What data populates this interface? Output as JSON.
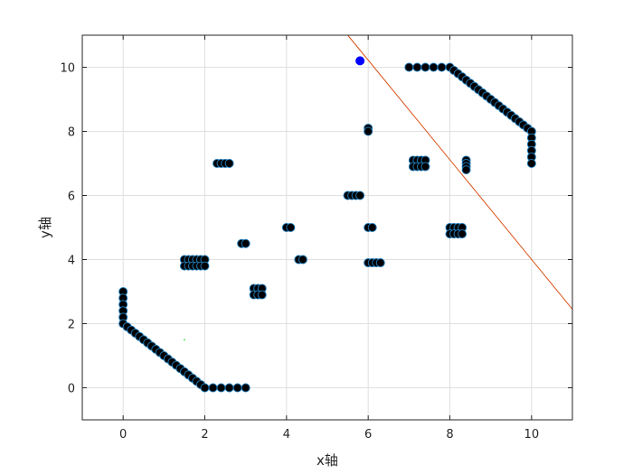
{
  "chart_data": {
    "type": "scatter",
    "xlabel": "x轴",
    "ylabel": "y轴",
    "xlim": [
      -1,
      11
    ],
    "ylim": [
      -1,
      11
    ],
    "xticks": [
      0,
      2,
      4,
      6,
      8,
      10
    ],
    "yticks": [
      0,
      2,
      4,
      6,
      8,
      10
    ],
    "grid": true,
    "colors": {
      "marker_fill": "#000000",
      "marker_edge": "#1f78b4",
      "line": "#d95319",
      "highlight": "#0000ff",
      "minor_mark": "#00cc00",
      "grid": "#e0e0e0",
      "axis": "#262626"
    },
    "series": [
      {
        "values": [
          [
            0,
            3.0
          ],
          [
            0,
            2.8
          ],
          [
            0,
            2.6
          ],
          [
            0,
            2.4
          ],
          [
            0,
            2.2
          ],
          [
            0,
            2.0
          ],
          [
            0.1,
            1.9
          ],
          [
            0.2,
            1.8
          ],
          [
            0.3,
            1.7
          ],
          [
            0.4,
            1.6
          ],
          [
            0.5,
            1.5
          ],
          [
            0.6,
            1.4
          ],
          [
            0.7,
            1.3
          ],
          [
            0.8,
            1.2
          ],
          [
            0.9,
            1.1
          ],
          [
            1.0,
            1.0
          ],
          [
            1.1,
            0.9
          ],
          [
            1.2,
            0.8
          ],
          [
            1.3,
            0.7
          ],
          [
            1.4,
            0.6
          ],
          [
            1.5,
            0.5
          ],
          [
            1.6,
            0.4
          ],
          [
            1.7,
            0.3
          ],
          [
            1.8,
            0.2
          ],
          [
            1.9,
            0.1
          ],
          [
            2.0,
            0
          ],
          [
            2.2,
            0
          ],
          [
            2.4,
            0
          ],
          [
            2.6,
            0
          ],
          [
            2.8,
            0
          ],
          [
            3.0,
            0
          ],
          [
            1.5,
            4.0
          ],
          [
            1.6,
            4.0
          ],
          [
            1.7,
            4.0
          ],
          [
            1.8,
            4.0
          ],
          [
            1.9,
            4.0
          ],
          [
            2.0,
            4.0
          ],
          [
            1.5,
            3.8
          ],
          [
            1.6,
            3.8
          ],
          [
            1.7,
            3.8
          ],
          [
            1.8,
            3.8
          ],
          [
            1.9,
            3.8
          ],
          [
            2.0,
            3.8
          ],
          [
            2.3,
            7.0
          ],
          [
            2.4,
            7.0
          ],
          [
            2.5,
            7.0
          ],
          [
            2.6,
            7.0
          ],
          [
            2.9,
            4.5
          ],
          [
            3.0,
            4.5
          ],
          [
            3.2,
            3.1
          ],
          [
            3.3,
            3.1
          ],
          [
            3.4,
            3.1
          ],
          [
            3.2,
            2.9
          ],
          [
            3.3,
            2.9
          ],
          [
            3.4,
            2.9
          ],
          [
            4.0,
            5.0
          ],
          [
            4.1,
            5.0
          ],
          [
            4.3,
            4.0
          ],
          [
            4.4,
            4.0
          ],
          [
            5.5,
            6.0
          ],
          [
            5.6,
            6.0
          ],
          [
            5.7,
            6.0
          ],
          [
            5.8,
            6.0
          ],
          [
            6.0,
            8.1
          ],
          [
            6.0,
            8.0
          ],
          [
            6.0,
            5.0
          ],
          [
            6.1,
            5.0
          ],
          [
            6.0,
            3.9
          ],
          [
            6.1,
            3.9
          ],
          [
            6.2,
            3.9
          ],
          [
            6.3,
            3.9
          ],
          [
            7.0,
            10.0
          ],
          [
            7.2,
            10.0
          ],
          [
            7.4,
            10.0
          ],
          [
            7.6,
            10.0
          ],
          [
            7.8,
            10.0
          ],
          [
            8.0,
            10.0
          ],
          [
            8.1,
            9.9
          ],
          [
            8.2,
            9.8
          ],
          [
            8.3,
            9.7
          ],
          [
            8.4,
            9.6
          ],
          [
            8.5,
            9.5
          ],
          [
            8.6,
            9.4
          ],
          [
            8.7,
            9.3
          ],
          [
            8.8,
            9.2
          ],
          [
            8.9,
            9.1
          ],
          [
            9.0,
            9.0
          ],
          [
            9.1,
            8.9
          ],
          [
            9.2,
            8.8
          ],
          [
            9.3,
            8.7
          ],
          [
            9.4,
            8.6
          ],
          [
            9.5,
            8.5
          ],
          [
            9.6,
            8.4
          ],
          [
            9.7,
            8.3
          ],
          [
            9.8,
            8.2
          ],
          [
            9.9,
            8.1
          ],
          [
            10.0,
            8.0
          ],
          [
            10.0,
            7.8
          ],
          [
            10.0,
            7.6
          ],
          [
            10.0,
            7.4
          ],
          [
            10.0,
            7.2
          ],
          [
            10.0,
            7.0
          ],
          [
            7.1,
            7.1
          ],
          [
            7.2,
            7.1
          ],
          [
            7.3,
            7.1
          ],
          [
            7.4,
            7.1
          ],
          [
            7.1,
            6.9
          ],
          [
            7.2,
            6.9
          ],
          [
            7.3,
            6.9
          ],
          [
            7.4,
            6.9
          ],
          [
            8.4,
            7.1
          ],
          [
            8.4,
            7.0
          ],
          [
            8.4,
            6.9
          ],
          [
            8.4,
            6.8
          ],
          [
            8.0,
            5.0
          ],
          [
            8.1,
            5.0
          ],
          [
            8.2,
            5.0
          ],
          [
            8.3,
            5.0
          ],
          [
            8.0,
            4.8
          ],
          [
            8.1,
            4.8
          ],
          [
            8.2,
            4.8
          ],
          [
            8.3,
            4.8
          ]
        ]
      }
    ],
    "highlight_point": [
      5.8,
      10.2
    ],
    "minor_point": [
      1.5,
      1.5
    ],
    "line": [
      [
        5.5,
        11.0
      ],
      [
        11.0,
        2.45
      ]
    ]
  }
}
